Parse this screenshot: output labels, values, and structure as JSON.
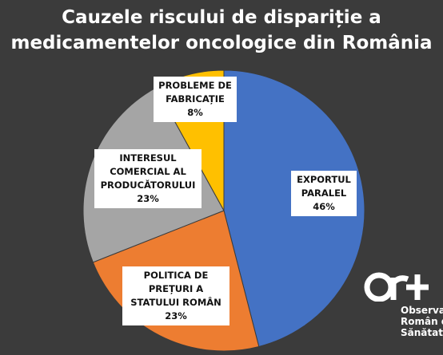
{
  "chart_data": {
    "type": "pie",
    "title_lines": [
      "Cauzele riscului de dispariție a",
      "medicamentelor oncologice din România"
    ],
    "slices": [
      {
        "label_lines": [
          "EXPORTUL",
          "PARALEL"
        ],
        "value": 46,
        "value_label": "46%",
        "color": "#4472c4"
      },
      {
        "label_lines": [
          "POLITICA DE",
          "PREȚURI A",
          "STATULUI ROMÂN"
        ],
        "value": 23,
        "value_label": "23%",
        "color": "#ed7d31"
      },
      {
        "label_lines": [
          "INTERESUL",
          "COMERCIAL AL",
          "PRODUCĂTORULUI"
        ],
        "value": 23,
        "value_label": "23%",
        "color": "#a5a5a5"
      },
      {
        "label_lines": [
          "PROBLEME DE",
          "FABRICAȚIE"
        ],
        "value": 8,
        "value_label": "8%",
        "color": "#ffc000"
      }
    ],
    "legend": "none"
  },
  "watermark": {
    "logo_letters": "ORS",
    "lines": [
      "Observa",
      "Român d",
      "Sănătate"
    ]
  }
}
